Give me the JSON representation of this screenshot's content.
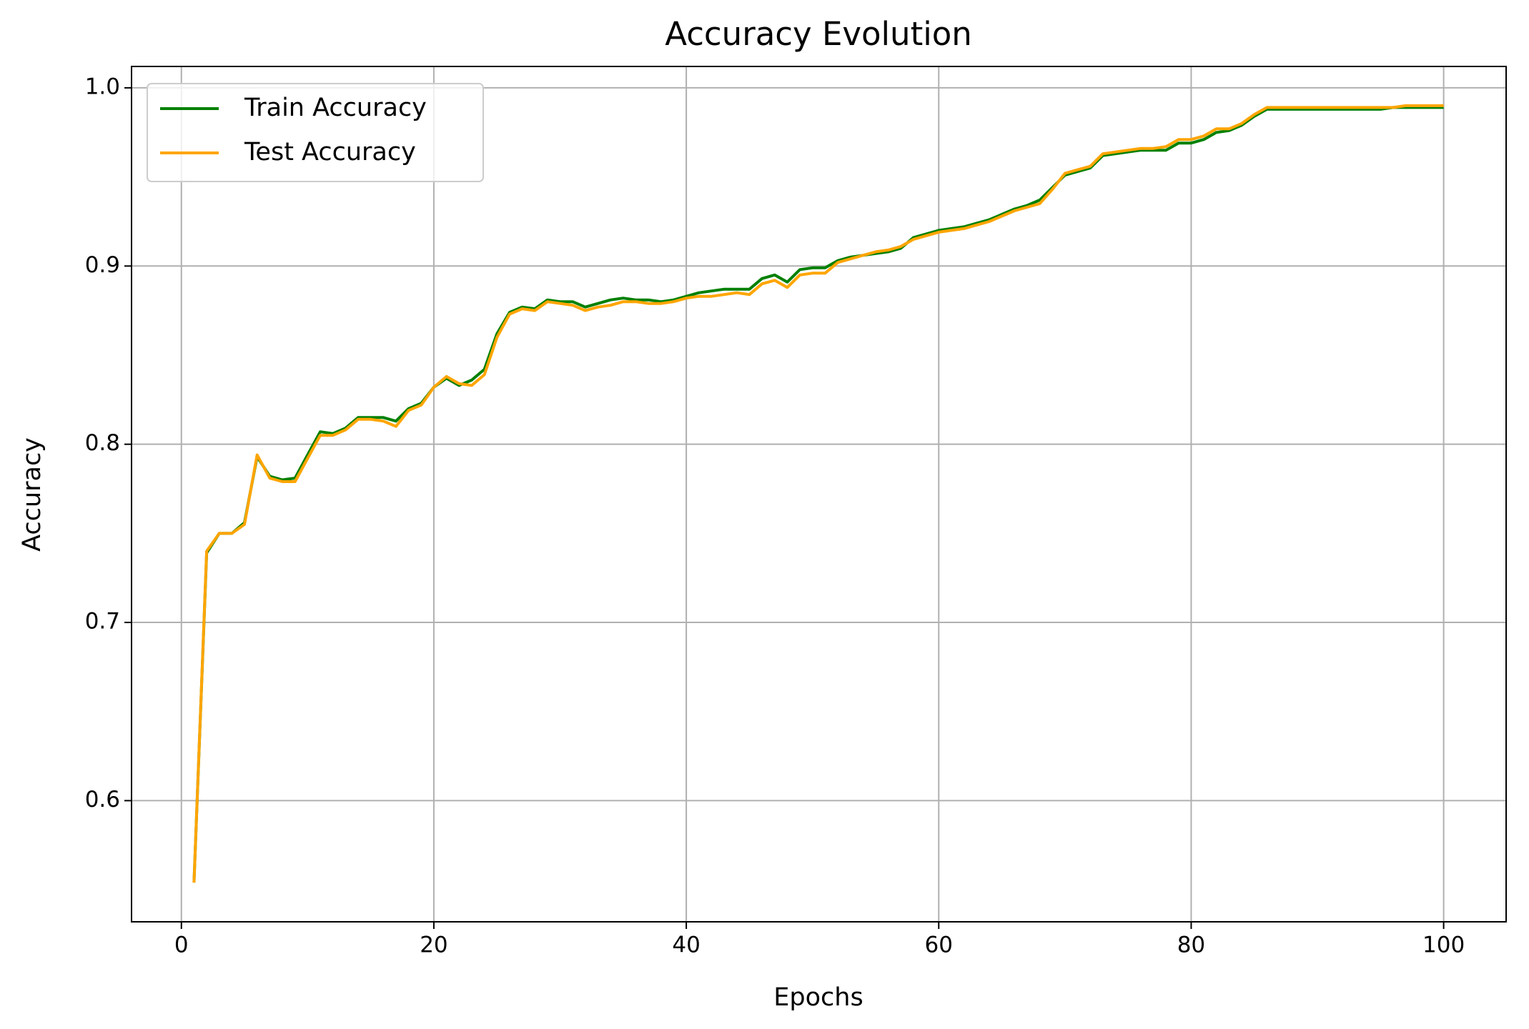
{
  "chart_data": {
    "type": "line",
    "title": "Accuracy Evolution",
    "xlabel": "Epochs",
    "ylabel": "Accuracy",
    "x": [
      1,
      2,
      3,
      4,
      5,
      6,
      7,
      8,
      9,
      10,
      11,
      12,
      13,
      14,
      15,
      16,
      17,
      18,
      19,
      20,
      21,
      22,
      23,
      24,
      25,
      26,
      27,
      28,
      29,
      30,
      31,
      32,
      33,
      34,
      35,
      36,
      37,
      38,
      39,
      40,
      41,
      42,
      43,
      44,
      45,
      46,
      47,
      48,
      49,
      50,
      51,
      52,
      53,
      54,
      55,
      56,
      57,
      58,
      59,
      60,
      61,
      62,
      63,
      64,
      65,
      66,
      67,
      68,
      69,
      70,
      71,
      72,
      73,
      74,
      75,
      76,
      77,
      78,
      79,
      80,
      81,
      82,
      83,
      84,
      85,
      86,
      87,
      88,
      89,
      90,
      91,
      92,
      93,
      94,
      95,
      96,
      97,
      98,
      99,
      100
    ],
    "series": [
      {
        "name": "Train Accuracy",
        "color": "#008000",
        "values": [
          0.554,
          0.739,
          0.75,
          0.75,
          0.756,
          0.793,
          0.782,
          0.78,
          0.781,
          0.794,
          0.807,
          0.806,
          0.809,
          0.815,
          0.815,
          0.815,
          0.813,
          0.82,
          0.823,
          0.832,
          0.837,
          0.833,
          0.836,
          0.842,
          0.862,
          0.874,
          0.877,
          0.876,
          0.881,
          0.88,
          0.88,
          0.877,
          0.879,
          0.881,
          0.882,
          0.881,
          0.881,
          0.88,
          0.881,
          0.883,
          0.885,
          0.886,
          0.887,
          0.887,
          0.887,
          0.893,
          0.895,
          0.891,
          0.898,
          0.899,
          0.899,
          0.903,
          0.905,
          0.906,
          0.907,
          0.908,
          0.91,
          0.916,
          0.918,
          0.92,
          0.921,
          0.922,
          0.924,
          0.926,
          0.929,
          0.932,
          0.934,
          0.937,
          0.944,
          0.951,
          0.953,
          0.955,
          0.962,
          0.963,
          0.964,
          0.965,
          0.965,
          0.965,
          0.969,
          0.969,
          0.971,
          0.975,
          0.976,
          0.979,
          0.984,
          0.988,
          0.988,
          0.988,
          0.988,
          0.988,
          0.988,
          0.988,
          0.988,
          0.988,
          0.988,
          0.989,
          0.989,
          0.989,
          0.989,
          0.989
        ]
      },
      {
        "name": "Test Accuracy",
        "color": "#ffa500",
        "values": [
          0.554,
          0.74,
          0.75,
          0.75,
          0.755,
          0.794,
          0.781,
          0.779,
          0.779,
          0.792,
          0.805,
          0.805,
          0.808,
          0.814,
          0.814,
          0.813,
          0.81,
          0.819,
          0.822,
          0.832,
          0.838,
          0.834,
          0.833,
          0.839,
          0.86,
          0.873,
          0.876,
          0.875,
          0.88,
          0.879,
          0.878,
          0.875,
          0.877,
          0.878,
          0.88,
          0.88,
          0.879,
          0.879,
          0.88,
          0.882,
          0.883,
          0.883,
          0.884,
          0.885,
          0.884,
          0.89,
          0.892,
          0.888,
          0.895,
          0.896,
          0.896,
          0.902,
          0.904,
          0.906,
          0.908,
          0.909,
          0.911,
          0.915,
          0.917,
          0.919,
          0.92,
          0.921,
          0.923,
          0.925,
          0.928,
          0.931,
          0.933,
          0.935,
          0.943,
          0.952,
          0.954,
          0.956,
          0.963,
          0.964,
          0.965,
          0.966,
          0.966,
          0.967,
          0.971,
          0.971,
          0.973,
          0.977,
          0.977,
          0.98,
          0.985,
          0.989,
          0.989,
          0.989,
          0.989,
          0.989,
          0.989,
          0.989,
          0.989,
          0.989,
          0.989,
          0.989,
          0.99,
          0.99,
          0.99,
          0.99
        ]
      }
    ],
    "xlim": [
      -3.95,
      104.95
    ],
    "ylim": [
      0.532,
      1.012
    ],
    "xticks": [
      0,
      20,
      40,
      60,
      80,
      100
    ],
    "yticks": [
      0.6,
      0.7,
      0.8,
      0.9,
      {
        "value": 1.0,
        "label": "1.0"
      }
    ],
    "grid": true,
    "legend": "upper left"
  }
}
